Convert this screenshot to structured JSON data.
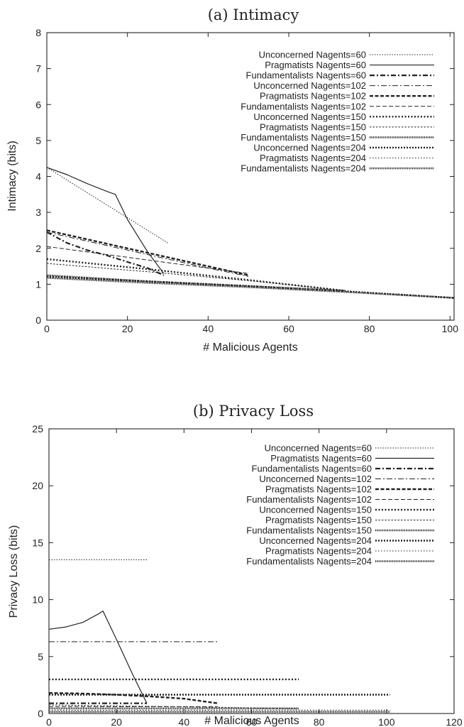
{
  "chart_data": [
    {
      "type": "line",
      "title": "(a) Intimacy",
      "xlabel": "# Malicious Agents",
      "ylabel": "Intimacy (bits)",
      "xlim": [
        0,
        101
      ],
      "ylim": [
        0,
        8
      ],
      "xticks": [
        0,
        20,
        40,
        60,
        80,
        100
      ],
      "yticks": [
        0,
        1,
        2,
        3,
        4,
        5,
        6,
        7,
        8
      ],
      "grid": false,
      "legend_position": "top-right",
      "series": [
        {
          "name": "Unconcerned Nagents=60",
          "x": [
            0,
            5,
            10,
            15,
            20,
            25,
            30
          ],
          "y": [
            4.25,
            3.9,
            3.55,
            3.2,
            2.85,
            2.5,
            2.15
          ]
        },
        {
          "name": "Pragmatists Nagents=60",
          "x": [
            0,
            5,
            10,
            15,
            17,
            20,
            25,
            29
          ],
          "y": [
            4.25,
            4.05,
            3.8,
            3.58,
            3.5,
            2.8,
            1.9,
            1.3
          ]
        },
        {
          "name": "Fundamentalists Nagents=60",
          "x": [
            0,
            5,
            10,
            15,
            20,
            25,
            29
          ],
          "y": [
            2.45,
            2.15,
            1.95,
            1.8,
            1.62,
            1.45,
            1.25
          ]
        },
        {
          "name": "Unconcerned Nagents=102",
          "x": [
            0,
            10,
            20,
            30,
            40,
            50
          ],
          "y": [
            2.45,
            2.2,
            1.95,
            1.7,
            1.45,
            1.22
          ]
        },
        {
          "name": "Pragmatists Nagents=102",
          "x": [
            0,
            10,
            20,
            30,
            40,
            50
          ],
          "y": [
            2.5,
            2.25,
            2.0,
            1.75,
            1.5,
            1.25
          ]
        },
        {
          "name": "Fundamentalists Nagents=102",
          "x": [
            0,
            10,
            20,
            30,
            40,
            50
          ],
          "y": [
            2.05,
            1.9,
            1.75,
            1.6,
            1.45,
            1.3
          ]
        },
        {
          "name": "Unconcerned Nagents=150",
          "x": [
            0,
            25,
            50,
            74
          ],
          "y": [
            1.7,
            1.42,
            1.12,
            0.82
          ]
        },
        {
          "name": "Pragmatists Nagents=150",
          "x": [
            0,
            25,
            50,
            74
          ],
          "y": [
            1.58,
            1.35,
            1.1,
            0.82
          ]
        },
        {
          "name": "Fundamentalists Nagents=150",
          "x": [
            0,
            25,
            50,
            74
          ],
          "y": [
            1.25,
            1.08,
            0.95,
            0.82
          ]
        },
        {
          "name": "Unconcerned Nagents=204",
          "x": [
            0,
            25,
            50,
            75,
            101
          ],
          "y": [
            1.22,
            1.08,
            0.95,
            0.8,
            0.62
          ]
        },
        {
          "name": "Pragmatists Nagents=204",
          "x": [
            0,
            25,
            50,
            75,
            101
          ],
          "y": [
            1.2,
            1.06,
            0.93,
            0.79,
            0.62
          ]
        },
        {
          "name": "Fundamentalists Nagents=204",
          "x": [
            0,
            25,
            50,
            75,
            101
          ],
          "y": [
            1.18,
            1.04,
            0.92,
            0.78,
            0.62
          ]
        }
      ]
    },
    {
      "type": "line",
      "title": "(b) Privacy Loss",
      "xlabel": "# Malicious Agents",
      "ylabel": "Privacy Loss (bits)",
      "xlim": [
        0,
        120
      ],
      "ylim": [
        0,
        25
      ],
      "xticks": [
        0,
        20,
        40,
        60,
        80,
        100,
        120
      ],
      "yticks": [
        0,
        5,
        10,
        15,
        20,
        25
      ],
      "grid": false,
      "legend_position": "top-right",
      "series": [
        {
          "name": "Unconcerned Nagents=60",
          "x": [
            0,
            29
          ],
          "y": [
            13.5,
            13.5
          ]
        },
        {
          "name": "Pragmatists Nagents=60",
          "x": [
            0,
            5,
            10,
            15,
            16,
            20,
            25,
            29
          ],
          "y": [
            7.4,
            7.6,
            8.0,
            8.8,
            9.0,
            6.5,
            3.3,
            0.9
          ]
        },
        {
          "name": "Fundamentalists Nagents=60",
          "x": [
            0,
            29
          ],
          "y": [
            0.9,
            0.9
          ]
        },
        {
          "name": "Unconcerned Nagents=102",
          "x": [
            0,
            50
          ],
          "y": [
            6.3,
            6.3
          ]
        },
        {
          "name": "Pragmatists Nagents=102",
          "x": [
            0,
            10,
            20,
            30,
            40,
            50
          ],
          "y": [
            1.8,
            1.75,
            1.65,
            1.5,
            1.3,
            0.9
          ]
        },
        {
          "name": "Fundamentalists Nagents=102",
          "x": [
            0,
            50
          ],
          "y": [
            0.6,
            0.6
          ]
        },
        {
          "name": "Unconcerned Nagents=150",
          "x": [
            0,
            74
          ],
          "y": [
            3.0,
            3.0
          ]
        },
        {
          "name": "Pragmatists Nagents=150",
          "x": [
            0,
            25,
            50,
            74
          ],
          "y": [
            0.75,
            0.65,
            0.55,
            0.4
          ]
        },
        {
          "name": "Fundamentalists Nagents=150",
          "x": [
            0,
            74
          ],
          "y": [
            0.45,
            0.45
          ]
        },
        {
          "name": "Unconcerned Nagents=204",
          "x": [
            0,
            101
          ],
          "y": [
            1.65,
            1.65
          ]
        },
        {
          "name": "Pragmatists Nagents=204",
          "x": [
            0,
            101
          ],
          "y": [
            0.3,
            0.3
          ]
        },
        {
          "name": "Fundamentalists Nagents=204",
          "x": [
            0,
            101
          ],
          "y": [
            0.15,
            0.15
          ]
        }
      ]
    }
  ]
}
